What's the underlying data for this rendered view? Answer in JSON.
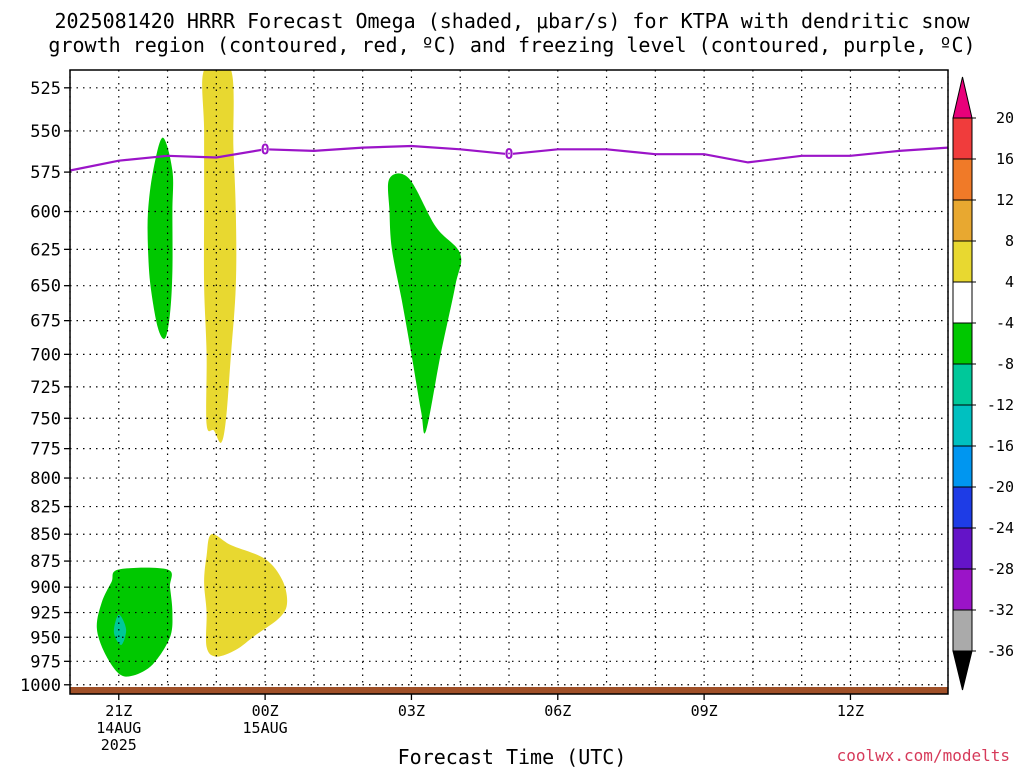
{
  "chart_data": {
    "type": "heatmap",
    "title_line1": "2025081420 HRRR Forecast Omega (shaded, μbar/s) for KTPA with dendritic snow",
    "title_line2": "growth region (contoured, red, ºC) and freezing level (contoured, purple, ºC)",
    "xlabel": "Forecast Time (UTC)",
    "credit": "coolwx.com/modelts",
    "y_scale": "log-pressure",
    "ylim": [
      1010,
      515
    ],
    "grid": true,
    "y_ticks": [
      "525",
      "550",
      "575",
      "600",
      "625",
      "650",
      "675",
      "700",
      "725",
      "750",
      "775",
      "800",
      "825",
      "850",
      "875",
      "900",
      "925",
      "950",
      "975",
      "1000"
    ],
    "x_range_hours": [
      -1,
      17
    ],
    "x_ticks": [
      {
        "hour": 0,
        "lines": [
          "21Z",
          "14AUG",
          "2025"
        ]
      },
      {
        "hour": 3,
        "lines": [
          "00Z",
          "15AUG"
        ]
      },
      {
        "hour": 6,
        "lines": [
          "03Z"
        ]
      },
      {
        "hour": 9,
        "lines": [
          "06Z"
        ]
      },
      {
        "hour": 12,
        "lines": [
          "09Z"
        ]
      },
      {
        "hour": 15,
        "lines": [
          "12Z"
        ]
      }
    ],
    "colorbar": {
      "labels": [
        "20",
        "16",
        "12",
        "8",
        "4",
        "-4",
        "-8",
        "-12",
        "-16",
        "-20",
        "-24",
        "-28",
        "-32",
        "-36"
      ],
      "colors": [
        "#e8007a",
        "#f03c3c",
        "#f07a28",
        "#e8a830",
        "#e8d830",
        "#ffffff",
        "#00c800",
        "#00c89a",
        "#00c0c0",
        "#0096f0",
        "#1e3ce6",
        "#6414c8",
        "#9b14c8",
        "#aaaaaa",
        "#000000"
      ]
    },
    "freezing_level": {
      "color": "#9b14c8",
      "label": "0",
      "points": [
        [
          -1,
          574
        ],
        [
          0,
          568
        ],
        [
          1,
          565
        ],
        [
          2,
          566
        ],
        [
          3,
          561
        ],
        [
          4,
          562
        ],
        [
          5,
          560
        ],
        [
          6,
          559
        ],
        [
          7,
          561
        ],
        [
          8,
          564
        ],
        [
          9,
          561
        ],
        [
          10,
          561
        ],
        [
          11,
          564
        ],
        [
          12,
          564
        ],
        [
          12.9,
          569
        ],
        [
          14,
          565
        ],
        [
          15,
          565
        ],
        [
          16,
          562
        ],
        [
          17,
          560
        ]
      ],
      "label_hours": [
        3,
        8
      ]
    },
    "omega_regions": [
      {
        "value_range": "-8 to -4",
        "color": "#00c800",
        "points": [
          [
            0.9,
            554
          ],
          [
            1.1,
            574
          ],
          [
            1.1,
            600
          ],
          [
            1.1,
            640
          ],
          [
            1.05,
            670
          ],
          [
            0.95,
            688
          ],
          [
            0.8,
            680
          ],
          [
            0.65,
            650
          ],
          [
            0.6,
            625
          ],
          [
            0.6,
            600
          ],
          [
            0.7,
            575
          ]
        ]
      },
      {
        "value_range": "4 to 8",
        "color": "#e8d830",
        "points": [
          [
            1.75,
            515
          ],
          [
            2.3,
            515
          ],
          [
            2.35,
            560
          ],
          [
            2.4,
            600
          ],
          [
            2.4,
            650
          ],
          [
            2.3,
            700
          ],
          [
            2.2,
            750
          ],
          [
            2.1,
            770
          ],
          [
            1.95,
            760
          ],
          [
            1.8,
            755
          ],
          [
            1.8,
            700
          ],
          [
            1.75,
            650
          ],
          [
            1.75,
            600
          ],
          [
            1.75,
            550
          ]
        ]
      },
      {
        "value_range": "-8 to -4",
        "color": "#00c800",
        "points": [
          [
            5.55,
            579
          ],
          [
            5.95,
            579
          ],
          [
            6.5,
            610
          ],
          [
            7.0,
            628
          ],
          [
            6.9,
            650
          ],
          [
            6.6,
            700
          ],
          [
            6.3,
            760
          ],
          [
            6.2,
            745
          ],
          [
            6.0,
            700
          ],
          [
            5.8,
            660
          ],
          [
            5.6,
            625
          ],
          [
            5.55,
            600
          ]
        ]
      },
      {
        "value_range": "-8 to -4",
        "color": "#00c800",
        "points": [
          [
            0.0,
            883
          ],
          [
            1.0,
            883
          ],
          [
            1.05,
            900
          ],
          [
            1.1,
            925
          ],
          [
            1.05,
            950
          ],
          [
            0.7,
            978
          ],
          [
            0.3,
            990
          ],
          [
            0.0,
            988
          ],
          [
            -0.3,
            965
          ],
          [
            -0.45,
            940
          ],
          [
            -0.35,
            915
          ],
          [
            -0.15,
            895
          ]
        ]
      },
      {
        "value_range": "-12 to -8",
        "color": "#00c89a",
        "points": [
          [
            0.0,
            927
          ],
          [
            0.15,
            942
          ],
          [
            0.05,
            958
          ],
          [
            -0.1,
            945
          ]
        ]
      },
      {
        "value_range": "4 to 8",
        "color": "#e8d830",
        "points": [
          [
            1.9,
            850
          ],
          [
            2.3,
            860
          ],
          [
            3.0,
            873
          ],
          [
            3.35,
            893
          ],
          [
            3.45,
            915
          ],
          [
            3.3,
            930
          ],
          [
            2.8,
            948
          ],
          [
            2.4,
            963
          ],
          [
            2.0,
            970
          ],
          [
            1.8,
            960
          ],
          [
            1.8,
            925
          ],
          [
            1.75,
            895
          ],
          [
            1.8,
            870
          ]
        ]
      }
    ],
    "surface_band": {
      "color": "#a05028",
      "pressure_top": 1013,
      "pressure_bottom": 1018
    }
  }
}
